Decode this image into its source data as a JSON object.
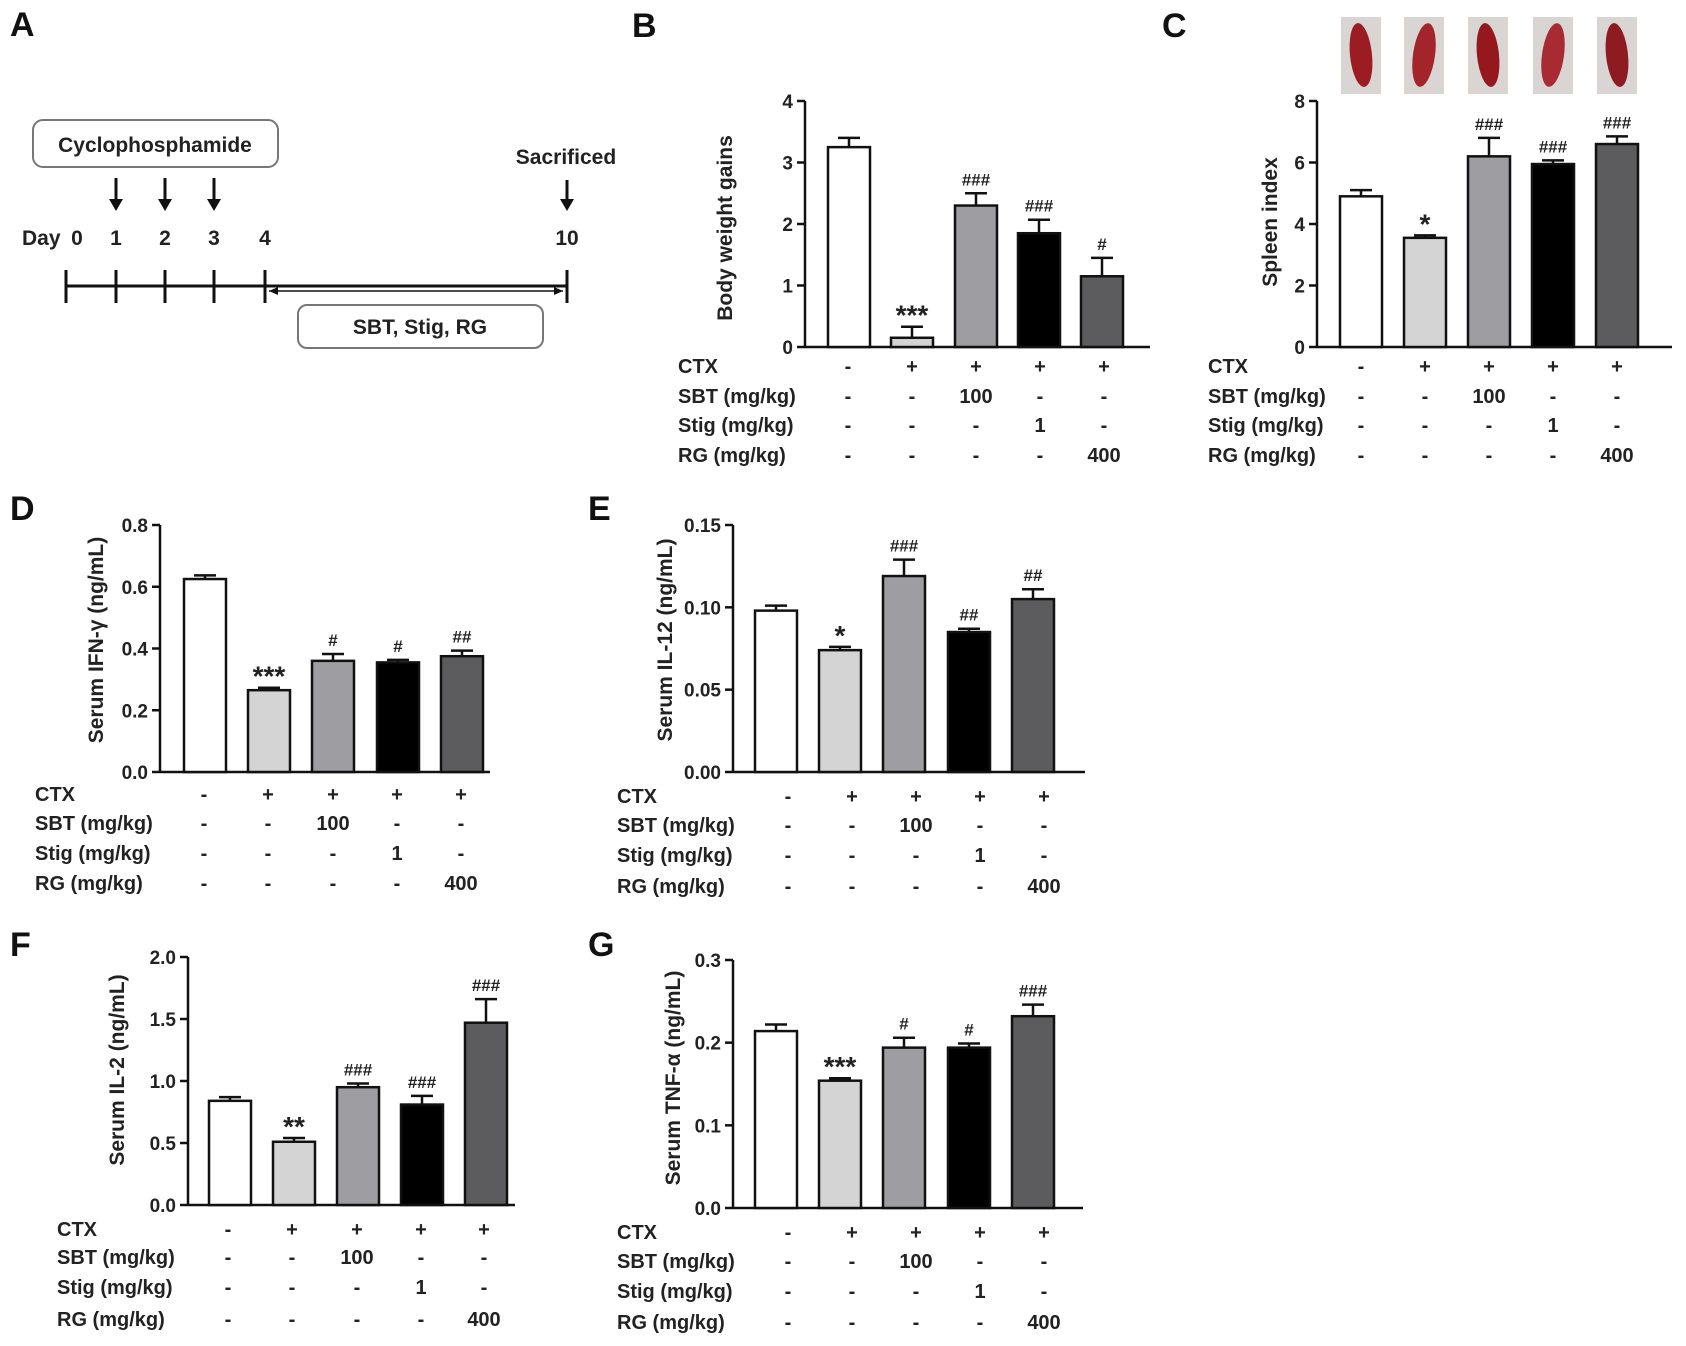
{
  "panels": {
    "A": {
      "letter": "A",
      "drug_label": "Cyclophosphamide",
      "day_prefix": "Day",
      "days": [
        "0",
        "1",
        "2",
        "3",
        "4",
        "10"
      ],
      "sacrificed_label": "Sacrificed",
      "treatment_label": "SBT, Stig, RG"
    }
  },
  "group_rows": [
    {
      "label": "CTX",
      "cells": [
        "-",
        "+",
        "+",
        "+",
        "+"
      ]
    },
    {
      "label": "SBT (mg/kg)",
      "cells": [
        "-",
        "-",
        "100",
        "-",
        "-"
      ]
    },
    {
      "label": "Stig  (mg/kg)",
      "cells": [
        "-",
        "-",
        "-",
        "1",
        "-"
      ]
    },
    {
      "label": "RG (mg/kg)",
      "cells": [
        "-",
        "-",
        "-",
        "-",
        "400"
      ]
    }
  ],
  "bar_colors": [
    "#ffffff",
    "#d4d4d4",
    "#9e9ea2",
    "#000000",
    "#5c5c5e"
  ],
  "spleen_image_colors": [
    "#9b1c22",
    "#a3242b",
    "#96181f",
    "#a82b33",
    "#8e1b22"
  ],
  "chart_data": [
    {
      "id": "B",
      "letter": "B",
      "type": "bar",
      "ylabel": "Body weight gains",
      "ylim": [
        0,
        4
      ],
      "yticks": [
        "0",
        "1",
        "2",
        "3",
        "4"
      ],
      "ytick_values": [
        0,
        1,
        2,
        3,
        4
      ],
      "values": [
        3.25,
        0.15,
        2.3,
        1.85,
        1.15
      ],
      "errors": [
        0.15,
        0.18,
        0.2,
        0.22,
        0.3
      ],
      "significance": [
        "",
        "***",
        "###",
        "###",
        "#"
      ]
    },
    {
      "id": "C",
      "letter": "C",
      "type": "bar",
      "ylabel": "Spleen index",
      "ylim": [
        0,
        8
      ],
      "yticks": [
        "0",
        "2",
        "4",
        "6",
        "8"
      ],
      "ytick_values": [
        0,
        2,
        4,
        6,
        8
      ],
      "values": [
        4.9,
        3.55,
        6.2,
        5.95,
        6.6
      ],
      "errors": [
        0.2,
        0.08,
        0.6,
        0.12,
        0.25
      ],
      "significance": [
        "",
        "*",
        "###",
        "###",
        "###"
      ]
    },
    {
      "id": "D",
      "letter": "D",
      "type": "bar",
      "ylabel": "Serum IFN-γ  (ng/mL)",
      "ylim": [
        0,
        0.8
      ],
      "yticks": [
        "0.0",
        "0.2",
        "0.4",
        "0.6",
        "0.8"
      ],
      "ytick_values": [
        0,
        0.2,
        0.4,
        0.6,
        0.8
      ],
      "values": [
        0.625,
        0.265,
        0.36,
        0.355,
        0.375
      ],
      "errors": [
        0.012,
        0.008,
        0.022,
        0.008,
        0.018
      ],
      "significance": [
        "",
        "***",
        "#",
        "#",
        "##"
      ]
    },
    {
      "id": "E",
      "letter": "E",
      "type": "bar",
      "ylabel": "Serum IL-12  (ng/mL)",
      "ylim": [
        0,
        0.15
      ],
      "yticks": [
        "0.00",
        "0.05",
        "0.10",
        "0.15"
      ],
      "ytick_values": [
        0,
        0.05,
        0.1,
        0.15
      ],
      "values": [
        0.098,
        0.074,
        0.119,
        0.085,
        0.105
      ],
      "errors": [
        0.003,
        0.002,
        0.01,
        0.002,
        0.006
      ],
      "significance": [
        "",
        "*",
        "###",
        "##",
        "##"
      ]
    },
    {
      "id": "F",
      "letter": "F",
      "type": "bar",
      "ylabel": "Serum IL-2  (ng/mL)",
      "ylim": [
        0,
        2.0
      ],
      "yticks": [
        "0.0",
        "0.5",
        "1.0",
        "1.5",
        "2.0"
      ],
      "ytick_values": [
        0,
        0.5,
        1,
        1.5,
        2
      ],
      "values": [
        0.84,
        0.51,
        0.95,
        0.81,
        1.47
      ],
      "errors": [
        0.03,
        0.03,
        0.03,
        0.07,
        0.19
      ],
      "significance": [
        "",
        "**",
        "###",
        "###",
        "###"
      ]
    },
    {
      "id": "G",
      "letter": "G",
      "type": "bar",
      "ylabel": "Serum TNF-α  (ng/mL)",
      "ylim": [
        0,
        0.3
      ],
      "yticks": [
        "0.0",
        "0.1",
        "0.2",
        "0.3"
      ],
      "ytick_values": [
        0,
        0.1,
        0.2,
        0.3
      ],
      "values": [
        0.214,
        0.154,
        0.194,
        0.194,
        0.232
      ],
      "errors": [
        0.008,
        0.003,
        0.012,
        0.005,
        0.014
      ],
      "significance": [
        "",
        "***",
        "#",
        "#",
        "###"
      ]
    }
  ]
}
